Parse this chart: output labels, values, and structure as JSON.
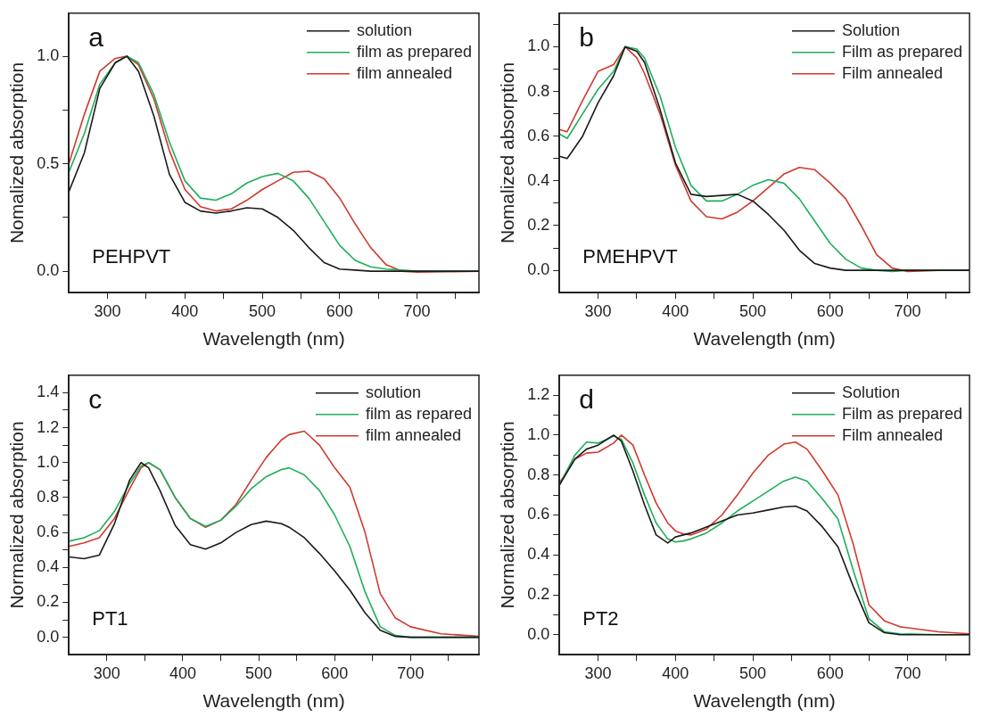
{
  "chart_data": [
    {
      "type": "line",
      "xlabel": "Wavelength (nm)",
      "ylabel": "Nomalized absorption",
      "annotations": [
        "a",
        "PEHPVT"
      ],
      "legend": "top right",
      "x": [
        250,
        270,
        290,
        310,
        325,
        340,
        360,
        380,
        400,
        420,
        440,
        460,
        480,
        500,
        520,
        540,
        560,
        580,
        600,
        620,
        640,
        660,
        680,
        700,
        740,
        780
      ],
      "xlim": [
        250,
        780
      ],
      "xticks": [
        300,
        {
          "value": 350,
          "label": null
        },
        400,
        {
          "value": 450,
          "label": null
        },
        500,
        {
          "value": 550,
          "label": null
        },
        600,
        {
          "value": 650,
          "label": null
        },
        700,
        {
          "value": 750,
          "label": null
        }
      ],
      "ylim": [
        -0.1,
        1.2
      ],
      "yticks": [
        {
          "value": 0,
          "label": "0.0"
        },
        {
          "value": 0.25,
          "label": null
        },
        {
          "value": 0.5,
          "label": "0.5"
        },
        {
          "value": 0.75,
          "label": null
        },
        {
          "value": 1,
          "label": "1.0"
        }
      ],
      "series": [
        {
          "name": "solution",
          "color": "#1a1a1a",
          "values": [
            0.37,
            0.55,
            0.85,
            0.97,
            1.0,
            0.93,
            0.72,
            0.45,
            0.32,
            0.28,
            0.27,
            0.28,
            0.295,
            0.29,
            0.25,
            0.19,
            0.11,
            0.04,
            0.01,
            0.005,
            0,
            0,
            0,
            0,
            0,
            0
          ]
        },
        {
          "name": "film as prepared",
          "color": "#1fae5a",
          "values": [
            0.46,
            0.64,
            0.87,
            0.97,
            1.0,
            0.97,
            0.82,
            0.6,
            0.42,
            0.34,
            0.33,
            0.36,
            0.41,
            0.44,
            0.455,
            0.42,
            0.34,
            0.23,
            0.12,
            0.05,
            0.02,
            0.01,
            0.005,
            0,
            0,
            0
          ]
        },
        {
          "name": "film annealed",
          "color": "#d0392f",
          "values": [
            0.5,
            0.73,
            0.93,
            0.99,
            1.0,
            0.96,
            0.8,
            0.56,
            0.38,
            0.3,
            0.28,
            0.29,
            0.33,
            0.38,
            0.42,
            0.46,
            0.465,
            0.43,
            0.34,
            0.22,
            0.11,
            0.03,
            0,
            -0.005,
            -0.003,
            0
          ]
        }
      ]
    },
    {
      "type": "line",
      "xlabel": "Wavelength (nm)",
      "ylabel": "Nomalized absorption",
      "annotations": [
        "b",
        "PMEHPVT"
      ],
      "legend": "top right",
      "x": [
        250,
        260,
        280,
        300,
        320,
        335,
        350,
        360,
        380,
        400,
        420,
        440,
        460,
        480,
        500,
        520,
        540,
        560,
        580,
        600,
        620,
        640,
        660,
        680,
        700,
        740,
        780
      ],
      "xlim": [
        250,
        780
      ],
      "xticks": [
        300,
        {
          "value": 350,
          "label": null
        },
        400,
        {
          "value": 450,
          "label": null
        },
        500,
        {
          "value": 550,
          "label": null
        },
        600,
        {
          "value": 650,
          "label": null
        },
        700,
        {
          "value": 750,
          "label": null
        }
      ],
      "ylim": [
        -0.1,
        1.15
      ],
      "yticks": [
        {
          "value": 0,
          "label": "0.0"
        },
        {
          "value": 0.1,
          "label": null
        },
        {
          "value": 0.2,
          "label": "0.2"
        },
        {
          "value": 0.3,
          "label": null
        },
        {
          "value": 0.4,
          "label": "0.4"
        },
        {
          "value": 0.5,
          "label": null
        },
        {
          "value": 0.6,
          "label": "0.6"
        },
        {
          "value": 0.7,
          "label": null
        },
        {
          "value": 0.8,
          "label": "0.8"
        },
        {
          "value": 0.9,
          "label": null
        },
        {
          "value": 1,
          "label": "1.0"
        },
        {
          "value": 1.1,
          "label": null
        }
      ],
      "series": [
        {
          "name": "Solution",
          "color": "#1a1a1a",
          "values": [
            0.51,
            0.5,
            0.6,
            0.75,
            0.87,
            1.0,
            0.98,
            0.93,
            0.72,
            0.48,
            0.34,
            0.33,
            0.335,
            0.34,
            0.31,
            0.25,
            0.18,
            0.09,
            0.03,
            0.01,
            0,
            0,
            0,
            0,
            0,
            0,
            0
          ]
        },
        {
          "name": "Film as prepared",
          "color": "#1fae5a",
          "values": [
            0.61,
            0.59,
            0.7,
            0.81,
            0.89,
            1.0,
            0.99,
            0.95,
            0.78,
            0.55,
            0.38,
            0.31,
            0.31,
            0.34,
            0.38,
            0.405,
            0.39,
            0.32,
            0.22,
            0.12,
            0.05,
            0.01,
            0,
            -0.005,
            0,
            0,
            0
          ]
        },
        {
          "name": "Film annealed",
          "color": "#d0392f",
          "values": [
            0.63,
            0.62,
            0.76,
            0.89,
            0.92,
            1.0,
            0.95,
            0.88,
            0.7,
            0.47,
            0.31,
            0.24,
            0.23,
            0.26,
            0.31,
            0.37,
            0.43,
            0.46,
            0.45,
            0.39,
            0.32,
            0.2,
            0.07,
            0.01,
            -0.005,
            0,
            0
          ]
        }
      ]
    },
    {
      "type": "line",
      "xlabel": "Wavelength (nm)",
      "ylabel": "Normalized absorption",
      "annotations": [
        "c",
        "PT1"
      ],
      "legend": "top right",
      "x": [
        250,
        270,
        290,
        310,
        330,
        345,
        355,
        370,
        390,
        410,
        430,
        450,
        470,
        490,
        510,
        530,
        540,
        560,
        580,
        600,
        620,
        640,
        660,
        680,
        700,
        740,
        790
      ],
      "xlim": [
        250,
        790
      ],
      "xticks": [
        300,
        {
          "value": 350,
          "label": null
        },
        400,
        {
          "value": 450,
          "label": null
        },
        500,
        {
          "value": 550,
          "label": null
        },
        600,
        {
          "value": 650,
          "label": null
        },
        700,
        {
          "value": 750,
          "label": null
        }
      ],
      "ylim": [
        -0.1,
        1.5
      ],
      "yticks": [
        {
          "value": 0,
          "label": "0.0"
        },
        {
          "value": 0.1,
          "label": null
        },
        {
          "value": 0.2,
          "label": "0.2"
        },
        {
          "value": 0.3,
          "label": null
        },
        {
          "value": 0.4,
          "label": "0.4"
        },
        {
          "value": 0.5,
          "label": null
        },
        {
          "value": 0.6,
          "label": "0.6"
        },
        {
          "value": 0.7,
          "label": null
        },
        {
          "value": 0.8,
          "label": "0.8"
        },
        {
          "value": 0.9,
          "label": null
        },
        {
          "value": 1,
          "label": "1.0"
        },
        {
          "value": 1.1,
          "label": null
        },
        {
          "value": 1.2,
          "label": "1.2"
        },
        {
          "value": 1.3,
          "label": null
        },
        {
          "value": 1.4,
          "label": "1.4"
        }
      ],
      "series": [
        {
          "name": "solution",
          "color": "#1a1a1a",
          "values": [
            0.46,
            0.45,
            0.47,
            0.65,
            0.9,
            1.0,
            0.97,
            0.84,
            0.64,
            0.53,
            0.505,
            0.54,
            0.6,
            0.645,
            0.665,
            0.65,
            0.63,
            0.57,
            0.48,
            0.38,
            0.27,
            0.14,
            0.04,
            0.005,
            0,
            0,
            0
          ]
        },
        {
          "name": "film as repared",
          "color": "#1fae5a",
          "values": [
            0.55,
            0.57,
            0.61,
            0.72,
            0.88,
            0.98,
            1.0,
            0.96,
            0.8,
            0.68,
            0.635,
            0.67,
            0.75,
            0.85,
            0.92,
            0.96,
            0.97,
            0.93,
            0.84,
            0.7,
            0.52,
            0.26,
            0.06,
            0.01,
            0,
            0,
            0
          ]
        },
        {
          "name": "film annealed",
          "color": "#d0392f",
          "values": [
            0.52,
            0.54,
            0.57,
            0.68,
            0.85,
            0.97,
            1.0,
            0.96,
            0.8,
            0.68,
            0.63,
            0.67,
            0.76,
            0.9,
            1.03,
            1.13,
            1.16,
            1.18,
            1.1,
            0.97,
            0.86,
            0.6,
            0.25,
            0.11,
            0.06,
            0.02,
            0.005
          ]
        }
      ]
    },
    {
      "type": "line",
      "xlabel": "Wavelength (nm)",
      "ylabel": "Normalized absorption",
      "annotations": [
        "d",
        "PT2"
      ],
      "legend": "top right",
      "x": [
        250,
        270,
        285,
        300,
        320,
        330,
        345,
        360,
        375,
        390,
        400,
        410,
        420,
        440,
        460,
        480,
        500,
        520,
        540,
        555,
        570,
        590,
        610,
        630,
        650,
        670,
        690,
        740,
        780
      ],
      "xlim": [
        250,
        780
      ],
      "xticks": [
        300,
        {
          "value": 350,
          "label": null
        },
        400,
        {
          "value": 450,
          "label": null
        },
        500,
        {
          "value": 550,
          "label": null
        },
        600,
        {
          "value": 650,
          "label": null
        },
        700,
        {
          "value": 750,
          "label": null
        }
      ],
      "ylim": [
        -0.1,
        1.3
      ],
      "yticks": [
        {
          "value": 0,
          "label": "0.0"
        },
        {
          "value": 0.1,
          "label": null
        },
        {
          "value": 0.2,
          "label": "0.2"
        },
        {
          "value": 0.3,
          "label": null
        },
        {
          "value": 0.4,
          "label": "0.4"
        },
        {
          "value": 0.5,
          "label": null
        },
        {
          "value": 0.6,
          "label": "0.6"
        },
        {
          "value": 0.7,
          "label": null
        },
        {
          "value": 0.8,
          "label": "0.8"
        },
        {
          "value": 0.9,
          "label": null
        },
        {
          "value": 1,
          "label": "1.0"
        },
        {
          "value": 1.1,
          "label": null
        },
        {
          "value": 1.2,
          "label": "1.2"
        }
      ],
      "series": [
        {
          "name": "Solution",
          "color": "#1a1a1a",
          "values": [
            0.75,
            0.88,
            0.93,
            0.95,
            1.0,
            0.97,
            0.82,
            0.65,
            0.5,
            0.46,
            0.49,
            0.5,
            0.51,
            0.54,
            0.57,
            0.6,
            0.61,
            0.625,
            0.64,
            0.645,
            0.62,
            0.54,
            0.44,
            0.24,
            0.06,
            0.01,
            0,
            0,
            0
          ]
        },
        {
          "name": "Film as prepared",
          "color": "#1fae5a",
          "values": [
            0.75,
            0.9,
            0.965,
            0.96,
            0.995,
            0.98,
            0.86,
            0.7,
            0.56,
            0.48,
            0.465,
            0.47,
            0.48,
            0.51,
            0.56,
            0.62,
            0.67,
            0.72,
            0.77,
            0.79,
            0.77,
            0.68,
            0.58,
            0.32,
            0.08,
            0.015,
            0.005,
            0,
            0
          ]
        },
        {
          "name": "Film annealed",
          "color": "#d0392f",
          "values": [
            0.76,
            0.88,
            0.91,
            0.915,
            0.96,
            1.0,
            0.95,
            0.8,
            0.66,
            0.56,
            0.52,
            0.505,
            0.5,
            0.53,
            0.6,
            0.7,
            0.81,
            0.9,
            0.955,
            0.965,
            0.93,
            0.82,
            0.7,
            0.45,
            0.15,
            0.07,
            0.04,
            0.015,
            0.005
          ]
        }
      ]
    }
  ]
}
